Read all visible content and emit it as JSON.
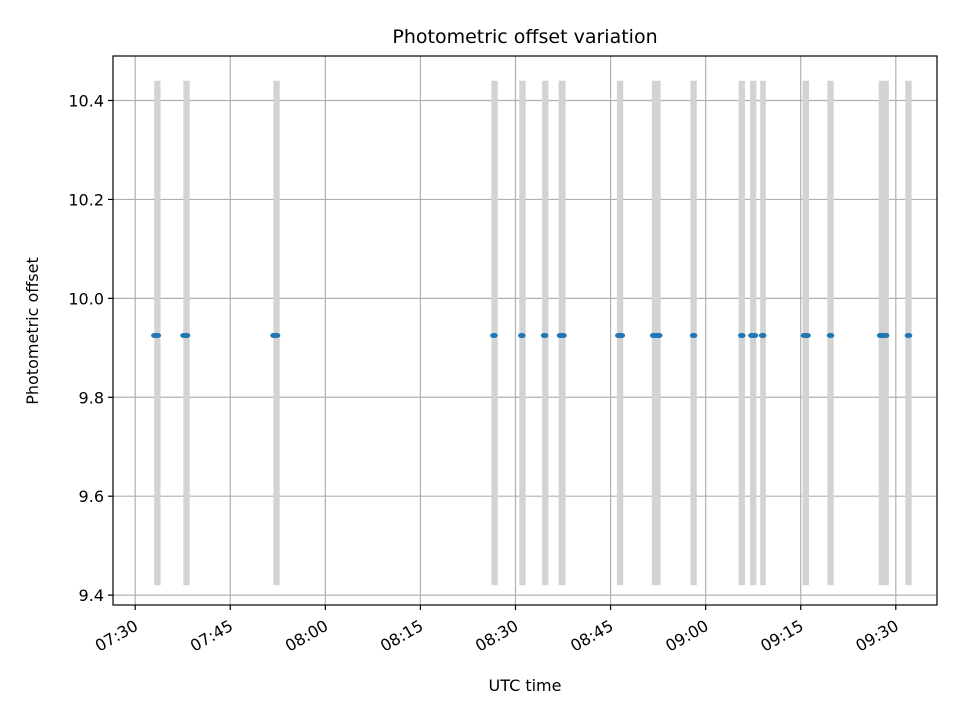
{
  "chart_data": {
    "type": "scatter",
    "title": "Photometric offset variation",
    "xlabel": "UTC time",
    "ylabel": "Photometric offset",
    "grid": true,
    "xlim_minutes": [
      446.5,
      576.5
    ],
    "ylim": [
      9.38,
      10.49
    ],
    "x_ticks": [
      {
        "minute": 450,
        "label": "07:30"
      },
      {
        "minute": 465,
        "label": "07:45"
      },
      {
        "minute": 480,
        "label": "08:00"
      },
      {
        "minute": 495,
        "label": "08:15"
      },
      {
        "minute": 510,
        "label": "08:30"
      },
      {
        "minute": 525,
        "label": "08:45"
      },
      {
        "minute": 540,
        "label": "09:00"
      },
      {
        "minute": 555,
        "label": "09:15"
      },
      {
        "minute": 570,
        "label": "09:30"
      }
    ],
    "y_ticks": [
      {
        "value": 9.4,
        "label": "9.4"
      },
      {
        "value": 9.6,
        "label": "9.6"
      },
      {
        "value": 9.8,
        "label": "9.8"
      },
      {
        "value": 10.0,
        "label": "10.0"
      },
      {
        "value": 10.2,
        "label": "10.2"
      },
      {
        "value": 10.4,
        "label": "10.4"
      }
    ],
    "exposure_span": {
      "low": 9.42,
      "high": 10.44
    },
    "exposure_ranges_minutes": [
      [
        453.0,
        454.0
      ],
      [
        457.6,
        458.6
      ],
      [
        471.8,
        472.8
      ],
      [
        506.2,
        507.2
      ],
      [
        510.6,
        511.6
      ],
      [
        514.2,
        515.2
      ],
      [
        516.8,
        517.9
      ],
      [
        526.0,
        527.0
      ],
      [
        531.5,
        532.9
      ],
      [
        537.6,
        538.6
      ],
      [
        545.2,
        546.2
      ],
      [
        547.0,
        548.0
      ],
      [
        548.6,
        549.5
      ],
      [
        555.3,
        556.3
      ],
      [
        559.2,
        560.2
      ],
      [
        567.3,
        568.9
      ],
      [
        571.5,
        572.5
      ]
    ],
    "series": [
      {
        "name": "offset",
        "color": "#1f77b4",
        "points": [
          {
            "minute": 453.1,
            "y": 9.925
          },
          {
            "minute": 453.5,
            "y": 9.925
          },
          {
            "minute": 457.7,
            "y": 9.925
          },
          {
            "minute": 458.1,
            "y": 9.925
          },
          {
            "minute": 471.9,
            "y": 9.925
          },
          {
            "minute": 472.3,
            "y": 9.925
          },
          {
            "minute": 506.6,
            "y": 9.925
          },
          {
            "minute": 511.0,
            "y": 9.925
          },
          {
            "minute": 514.6,
            "y": 9.925
          },
          {
            "minute": 517.1,
            "y": 9.925
          },
          {
            "minute": 517.5,
            "y": 9.925
          },
          {
            "minute": 526.3,
            "y": 9.925
          },
          {
            "minute": 526.7,
            "y": 9.925
          },
          {
            "minute": 531.8,
            "y": 9.925
          },
          {
            "minute": 532.2,
            "y": 9.925
          },
          {
            "minute": 532.6,
            "y": 9.925
          },
          {
            "minute": 538.1,
            "y": 9.925
          },
          {
            "minute": 545.7,
            "y": 9.925
          },
          {
            "minute": 547.3,
            "y": 9.925
          },
          {
            "minute": 547.7,
            "y": 9.925
          },
          {
            "minute": 549.0,
            "y": 9.925
          },
          {
            "minute": 555.6,
            "y": 9.925
          },
          {
            "minute": 556.0,
            "y": 9.925
          },
          {
            "minute": 559.7,
            "y": 9.925
          },
          {
            "minute": 567.6,
            "y": 9.925
          },
          {
            "minute": 568.0,
            "y": 9.925
          },
          {
            "minute": 568.4,
            "y": 9.925
          },
          {
            "minute": 572.0,
            "y": 9.925
          }
        ]
      }
    ],
    "band_color": "#d3d3d3",
    "grid_color": "#b0b0b0"
  }
}
